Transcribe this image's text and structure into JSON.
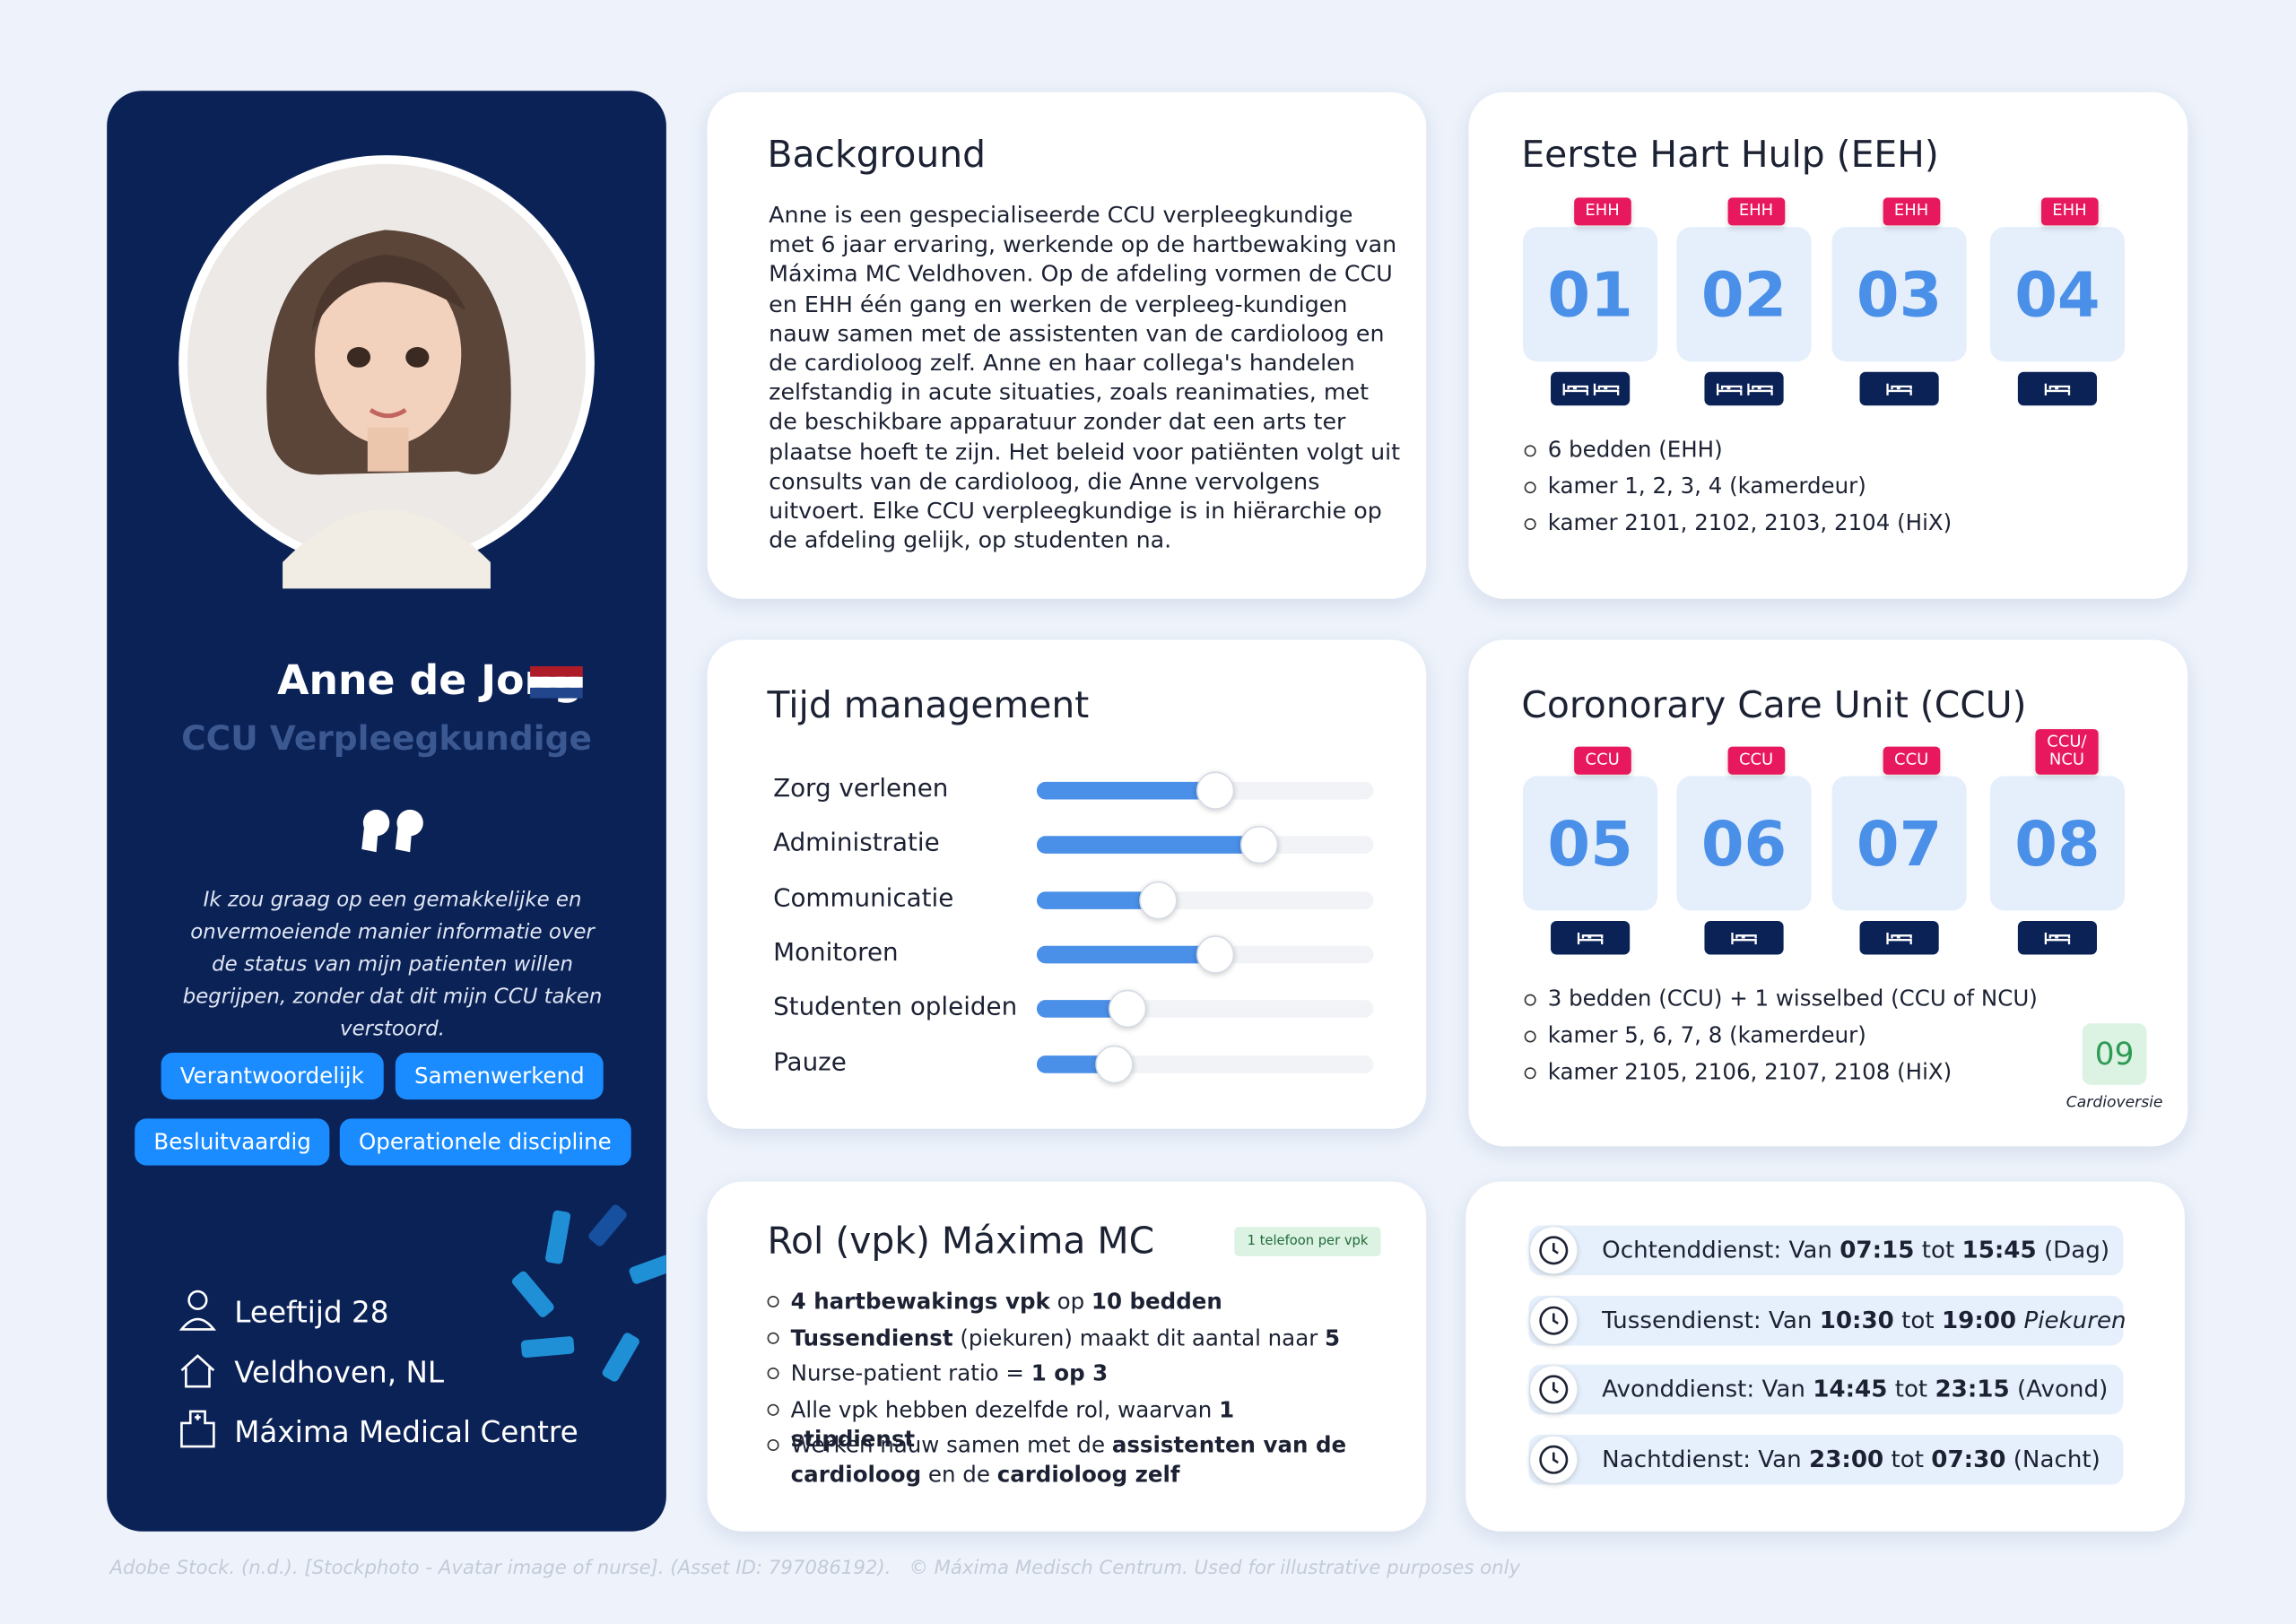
{
  "profile": {
    "name": "Anne de Jong",
    "role": "CCU Verpleegkundige",
    "quote": "Ik zou graag op een gemakkelijke en onvermoeiende manier informatie over de status van mijn patienten willen begrijpen, zonder dat dit mijn CCU taken verstoord.",
    "traits": [
      "Verantwoordelijk",
      "Samenwerkend",
      "Besluitvaardig",
      "Operationele discipline"
    ],
    "details": [
      "Leeftijd 28",
      "Veldhoven, NL",
      "Máxima Medical Centre"
    ]
  },
  "background": {
    "title": "Background",
    "text": "Anne is een gespecialiseerde CCU verpleegkundige met 6 jaar ervaring, werkende op de hartbewaking van Máxima MC Veldhoven. Op de afdeling vormen de CCU en EHH één gang en werken de verpleeg-kundigen nauw samen met de assistenten van de cardioloog en de cardioloog zelf. Anne en haar collega's handelen zelfstandig in acute situaties, zoals reanimaties, met de beschikbare apparatuur zonder dat een arts ter plaatse hoeft te zijn. Het beleid voor patiënten volgt uit consults van de cardioloog, die Anne vervolgens uitvoert. Elke CCU verpleegkundige is in hiërarchie op de afdeling gelijk, op studenten na."
  },
  "eeh": {
    "title": "Eerste Hart Hulp (EEH)",
    "rooms": [
      {
        "number": "01",
        "tag": "EHH",
        "beds": 2
      },
      {
        "number": "02",
        "tag": "EHH",
        "beds": 2
      },
      {
        "number": "03",
        "tag": "EHH",
        "beds": 1
      },
      {
        "number": "04",
        "tag": "EHH",
        "beds": 1
      }
    ],
    "notes": [
      "6 bedden (EHH)",
      "kamer 1, 2, 3, 4 (kamerdeur)",
      "kamer 2101, 2102, 2103, 2104 (HiX)"
    ]
  },
  "time": {
    "title": "Tijd management",
    "items": [
      {
        "label": "Zorg verlenen",
        "value": 0.53
      },
      {
        "label": "Administratie",
        "value": 0.66
      },
      {
        "label": "Communicatie",
        "value": 0.36
      },
      {
        "label": "Monitoren",
        "value": 0.53
      },
      {
        "label": "Studenten opleiden",
        "value": 0.27
      },
      {
        "label": "Pauze",
        "value": 0.23
      }
    ]
  },
  "ccu": {
    "title": "Coronorary Care Unit (CCU)",
    "rooms": [
      {
        "number": "05",
        "tag": "CCU",
        "beds": 1
      },
      {
        "number": "06",
        "tag": "CCU",
        "beds": 1
      },
      {
        "number": "07",
        "tag": "CCU",
        "beds": 1
      },
      {
        "number": "08",
        "tag": "CCU/\nNCU",
        "beds": 1
      }
    ],
    "notes": [
      "3 bedden (CCU) + 1 wisselbed (CCU of NCU)",
      "kamer 5, 6, 7, 8 (kamerdeur)",
      "kamer 2105, 2106, 2107, 2108 (HiX)"
    ],
    "extra": {
      "number": "09",
      "label": "Cardioversie"
    }
  },
  "role": {
    "title": "Rol (vpk) Máxima MC",
    "badge": "1 telefoon per vpk",
    "items": [
      [
        {
          "text": "4 hartbewakings vpk",
          "bold": true
        },
        {
          "text": " op "
        },
        {
          "text": "10 bedden",
          "bold": true
        }
      ],
      [
        {
          "text": "Tussendienst",
          "bold": true
        },
        {
          "text": " (piekuren) maakt dit aantal naar "
        },
        {
          "text": "5",
          "bold": true
        }
      ],
      [
        {
          "text": "Nurse-patient ratio = "
        },
        {
          "text": "1 op 3",
          "bold": true
        }
      ],
      [
        {
          "text": "Alle vpk hebben dezelfde rol, waarvan "
        },
        {
          "text": "1 stipdienst",
          "bold": true
        }
      ],
      [
        {
          "text": "Werken nauw samen met de "
        },
        {
          "text": "assistenten van de cardioloog",
          "bold": true
        },
        {
          "text": " en de "
        },
        {
          "text": "cardioloog zelf",
          "bold": true
        }
      ]
    ]
  },
  "shifts": [
    [
      {
        "text": "Ochtenddienst: Van "
      },
      {
        "text": "07:15",
        "bold": true
      },
      {
        "text": " tot "
      },
      {
        "text": "15:45",
        "bold": true
      },
      {
        "text": " (Dag)"
      }
    ],
    [
      {
        "text": "Tussendienst: Van "
      },
      {
        "text": "10:30",
        "bold": true
      },
      {
        "text": " tot "
      },
      {
        "text": "19:00",
        "bold": true
      },
      {
        "text": " "
      },
      {
        "text": "Piekuren",
        "italic": true
      }
    ],
    [
      {
        "text": "Avonddienst: Van "
      },
      {
        "text": "14:45",
        "bold": true
      },
      {
        "text": " tot "
      },
      {
        "text": "23:15",
        "bold": true
      },
      {
        "text": " (Avond)"
      }
    ],
    [
      {
        "text": "Nachtdienst: Van "
      },
      {
        "text": "23:00",
        "bold": true
      },
      {
        "text": " tot "
      },
      {
        "text": "07:30",
        "bold": true
      },
      {
        "text": " (Nacht)"
      }
    ]
  ],
  "footer": "Adobe Stock. (n.d.). [Stockphoto - Avatar image of nurse]. (Asset ID: 797086192).   © Máxima Medisch Centrum. Used for illustrative purposes only"
}
